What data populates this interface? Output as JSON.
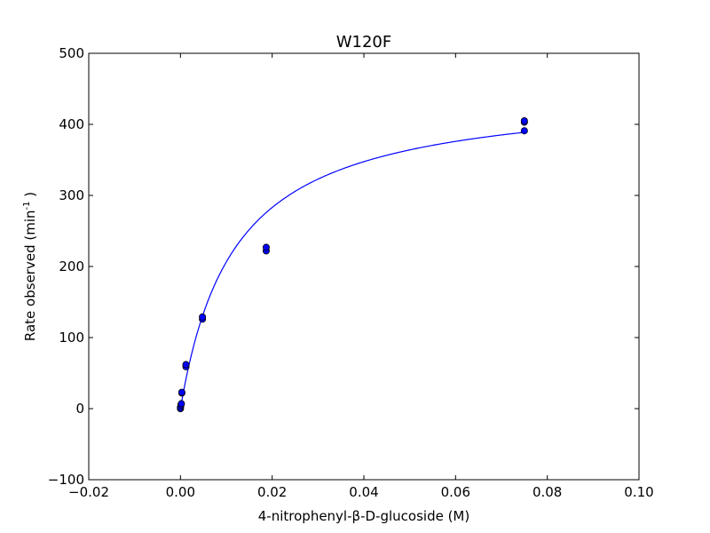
{
  "chart_data": {
    "type": "scatter",
    "title": "W120F",
    "xlabel": "4-nitrophenyl-β-D-glucoside (M)",
    "ylabel_main": "Rate observed (min",
    "ylabel_sup": "-1",
    "ylabel_tail": " )",
    "xlim": [
      -0.02,
      0.1
    ],
    "ylim": [
      -100,
      500
    ],
    "x_ticks": [
      -0.02,
      0.0,
      0.02,
      0.04,
      0.06,
      0.08,
      0.1
    ],
    "x_tick_labels": [
      "−0.02",
      "0.00",
      "0.02",
      "0.04",
      "0.06",
      "0.08",
      "0.10"
    ],
    "y_ticks": [
      -100,
      0,
      100,
      200,
      300,
      400,
      500
    ],
    "y_tick_labels": [
      "−100",
      "0",
      "100",
      "200",
      "300",
      "400",
      "500"
    ],
    "grid": false,
    "series": [
      {
        "type": "scatter",
        "color": "#0000ff",
        "edge_color": "#000000",
        "points": [
          {
            "x": 0.0,
            "y": 0
          },
          {
            "x": 0.0,
            "y": 2
          },
          {
            "x": 0.0001,
            "y": 5
          },
          {
            "x": 0.0002,
            "y": 7
          },
          {
            "x": 0.0003,
            "y": 22
          },
          {
            "x": 0.0003,
            "y": 23
          },
          {
            "x": 0.0012,
            "y": 59
          },
          {
            "x": 0.0012,
            "y": 62
          },
          {
            "x": 0.0048,
            "y": 126
          },
          {
            "x": 0.0048,
            "y": 129
          },
          {
            "x": 0.0187,
            "y": 222
          },
          {
            "x": 0.0187,
            "y": 227
          },
          {
            "x": 0.075,
            "y": 391
          },
          {
            "x": 0.075,
            "y": 403
          },
          {
            "x": 0.075,
            "y": 405
          }
        ]
      },
      {
        "type": "line",
        "color": "#0000ff",
        "vmax": 450,
        "km": 0.0118,
        "x_start": 0.0,
        "x_end": 0.075
      }
    ]
  }
}
